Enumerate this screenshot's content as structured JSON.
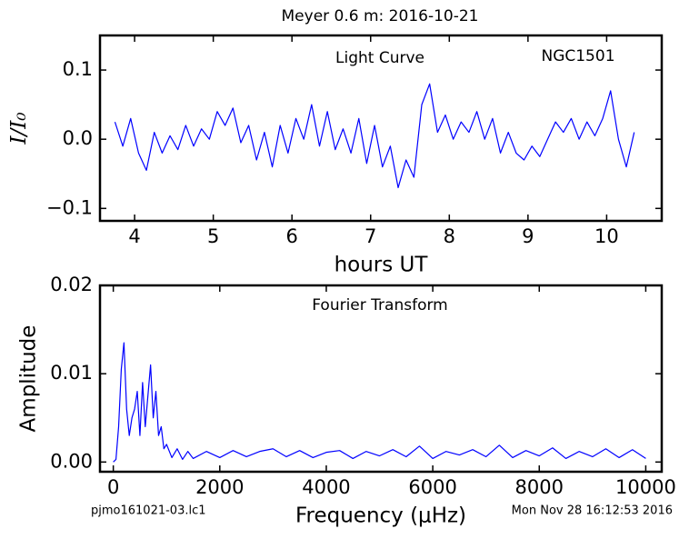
{
  "title": "Meyer 0.6 m:  2016-10-21",
  "footnotes": [
    "pjmo161021-03.lc1",
    "Mon Nov 28 16:12:53 2016"
  ],
  "chart_data": [
    {
      "type": "line",
      "x_label": "hours UT",
      "y_label": "I/I₀",
      "annotations": [
        "Light Curve",
        "NGC1501"
      ],
      "xlim": [
        3.56,
        10.7
      ],
      "ylim": [
        -0.118,
        0.15
      ],
      "xticks": [
        4,
        5,
        6,
        7,
        8,
        9,
        10
      ],
      "yticks": [
        {
          "value": -0.1,
          "label": "−0.1"
        },
        {
          "value": 0,
          "label": "0.0"
        },
        0.1
      ],
      "x": [
        3.75,
        3.85,
        3.95,
        4.05,
        4.15,
        4.25,
        4.35,
        4.45,
        4.55,
        4.65,
        4.75,
        4.85,
        4.95,
        5.05,
        5.15,
        5.25,
        5.35,
        5.45,
        5.55,
        5.65,
        5.75,
        5.85,
        5.95,
        6.05,
        6.15,
        6.25,
        6.35,
        6.45,
        6.55,
        6.65,
        6.75,
        6.85,
        6.95,
        7.05,
        7.15,
        7.25,
        7.35,
        7.45,
        7.55,
        7.65,
        7.75,
        7.85,
        7.95,
        8.05,
        8.15,
        8.25,
        8.35,
        8.45,
        8.55,
        8.65,
        8.75,
        8.85,
        8.95,
        9.05,
        9.15,
        9.25,
        9.35,
        9.45,
        9.55,
        9.65,
        9.75,
        9.85,
        9.95,
        10.05,
        10.15,
        10.25,
        10.35
      ],
      "series": [
        {
          "color": "#0000ff",
          "values": [
            0.025,
            -0.01,
            0.03,
            -0.02,
            -0.045,
            0.01,
            -0.02,
            0.005,
            -0.015,
            0.02,
            -0.01,
            0.015,
            0.0,
            0.04,
            0.02,
            0.045,
            -0.005,
            0.02,
            -0.03,
            0.01,
            -0.04,
            0.02,
            -0.02,
            0.03,
            0.0,
            0.05,
            -0.01,
            0.04,
            -0.015,
            0.015,
            -0.02,
            0.03,
            -0.035,
            0.02,
            -0.04,
            -0.01,
            -0.07,
            -0.03,
            -0.055,
            0.05,
            0.08,
            0.01,
            0.035,
            0.0,
            0.025,
            0.01,
            0.04,
            0.0,
            0.03,
            -0.02,
            0.01,
            -0.02,
            -0.03,
            -0.01,
            -0.025,
            0.0,
            0.025,
            0.01,
            0.03,
            0.0,
            0.025,
            0.005,
            0.03,
            0.07,
            0.0,
            -0.04,
            0.01
          ]
        }
      ]
    },
    {
      "type": "line",
      "x_label": "Frequency (μHz)",
      "y_label": "Amplitude",
      "annotations": [
        "Fourier Transform"
      ],
      "xlim": [
        -250,
        10300
      ],
      "ylim": [
        -0.0011,
        0.02
      ],
      "xticks": [
        0,
        2000,
        4000,
        6000,
        8000,
        10000
      ],
      "yticks": [
        {
          "value": 0,
          "label": "0.00"
        },
        {
          "value": 0.01,
          "label": "0.01"
        },
        {
          "value": 0.02,
          "label": "0.02"
        }
      ],
      "x": [
        0,
        50,
        100,
        150,
        200,
        250,
        300,
        350,
        400,
        450,
        500,
        550,
        600,
        650,
        700,
        750,
        800,
        850,
        900,
        950,
        1000,
        1100,
        1200,
        1300,
        1400,
        1500,
        1750,
        2000,
        2250,
        2500,
        2750,
        3000,
        3250,
        3500,
        3750,
        4000,
        4250,
        4500,
        4750,
        5000,
        5250,
        5500,
        5750,
        6000,
        6250,
        6500,
        6750,
        7000,
        7250,
        7500,
        7750,
        8000,
        8250,
        8500,
        8750,
        9000,
        9250,
        9500,
        9750,
        10000
      ],
      "series": [
        {
          "color": "#0000ff",
          "values": [
            0.0,
            0.0003,
            0.004,
            0.0105,
            0.0135,
            0.006,
            0.003,
            0.005,
            0.006,
            0.008,
            0.003,
            0.009,
            0.004,
            0.0075,
            0.011,
            0.005,
            0.008,
            0.003,
            0.004,
            0.0015,
            0.002,
            0.0005,
            0.0015,
            0.0003,
            0.0012,
            0.0004,
            0.0012,
            0.0005,
            0.0013,
            0.0006,
            0.0012,
            0.0015,
            0.0006,
            0.0013,
            0.0005,
            0.0011,
            0.0013,
            0.0004,
            0.0012,
            0.0007,
            0.0014,
            0.0006,
            0.0018,
            0.0004,
            0.0012,
            0.0008,
            0.0014,
            0.0006,
            0.0019,
            0.0005,
            0.0013,
            0.0007,
            0.0016,
            0.0004,
            0.0012,
            0.0006,
            0.0015,
            0.0005,
            0.0014,
            0.0004
          ]
        }
      ]
    }
  ]
}
